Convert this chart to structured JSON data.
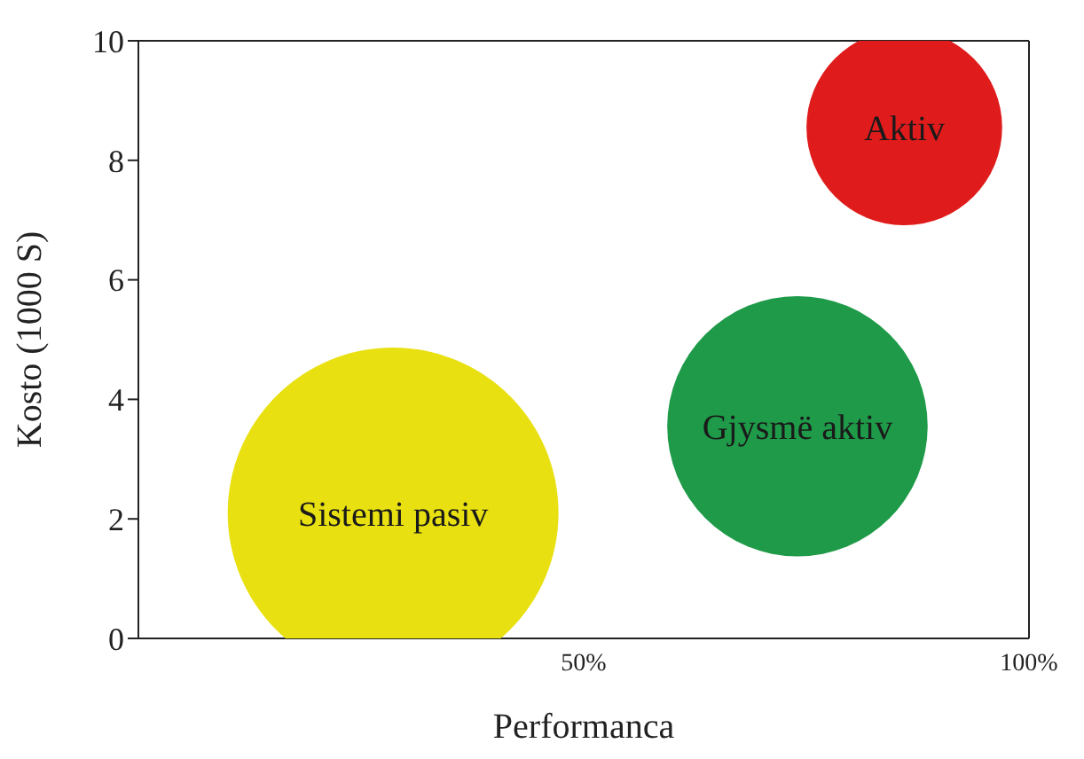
{
  "chart_data": {
    "type": "bubble",
    "xlabel": "Performanca",
    "ylabel": "Kosto (1000 S)",
    "xlim": [
      0,
      100
    ],
    "xticks": [
      {
        "value": 50,
        "label": "50%"
      },
      {
        "value": 100,
        "label": "100%"
      }
    ],
    "ylim": [
      0,
      10
    ],
    "yticks": [
      0,
      2,
      4,
      6,
      8,
      10
    ],
    "legend": false,
    "series": [
      {
        "name": "Sistemi pasiv",
        "color": "#e8e010",
        "x": [
          28.6
        ],
        "values": [
          2.1
        ],
        "sizes": [
          1
        ]
      },
      {
        "name": "Gjysmë aktiv",
        "color": "#1e9a48",
        "x": [
          74
        ],
        "values": [
          3.55
        ],
        "sizes": [
          0.62
        ]
      },
      {
        "name": "Aktiv",
        "color": "#e01b1b",
        "x": [
          86
        ],
        "values": [
          8.55
        ],
        "sizes": [
          0.35
        ]
      }
    ]
  }
}
